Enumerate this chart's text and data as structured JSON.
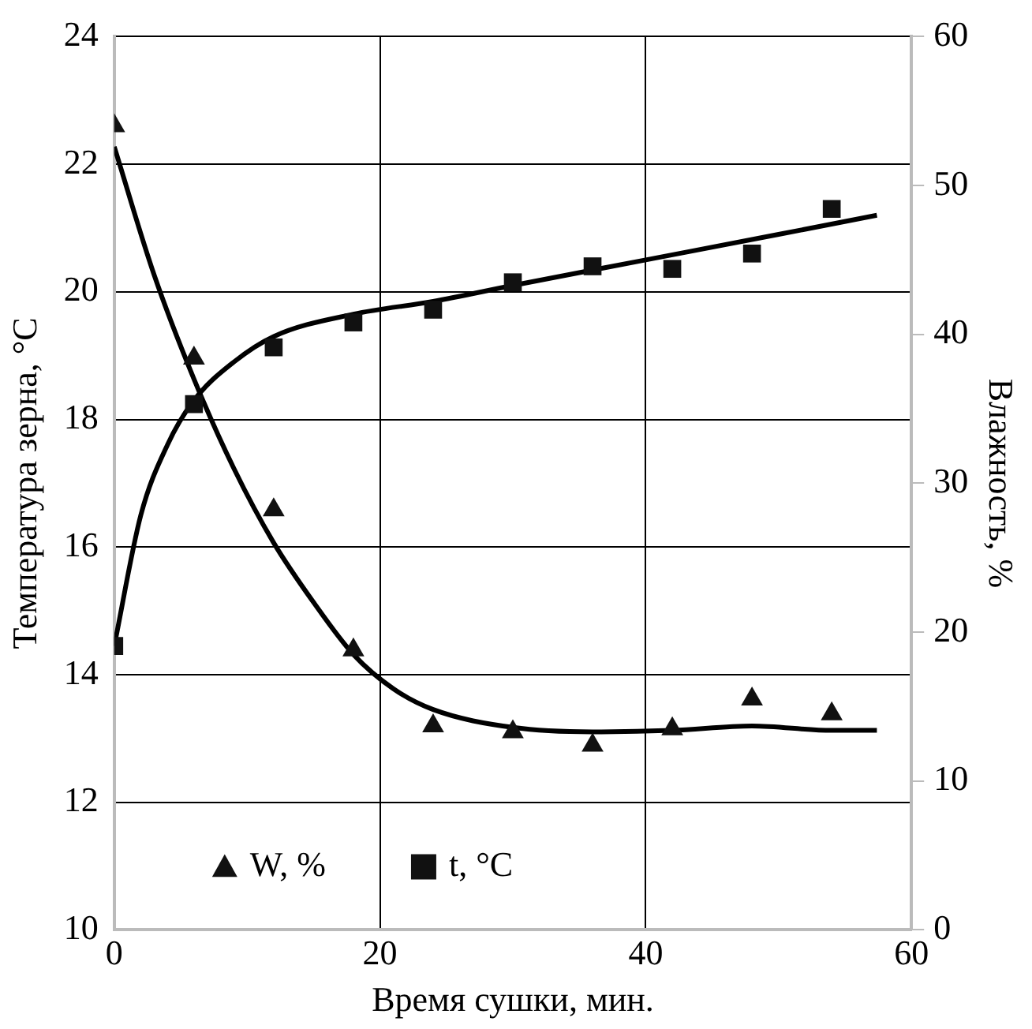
{
  "chart_data": {
    "type": "scatter",
    "xlabel": "Время сушки, мин.",
    "ylabel": "Температура зерна, °С",
    "y2label": "Влажность, %",
    "xlim": [
      0,
      60
    ],
    "xticks": [
      0,
      20,
      40,
      60
    ],
    "ylim": [
      10,
      24
    ],
    "yticks": [
      10,
      12,
      14,
      16,
      18,
      20,
      22,
      24
    ],
    "y2lim": [
      0,
      60
    ],
    "y2ticks": [
      0,
      10,
      20,
      30,
      40,
      50,
      60
    ],
    "grid": true,
    "legend": "bottom",
    "x": [
      0,
      6,
      12,
      18,
      24,
      30,
      36,
      42,
      48,
      54
    ],
    "series": [
      {
        "name": "W, %",
        "type": "scatter",
        "axis": "y2",
        "marker": "triangle",
        "color": "#111111",
        "values": [
          54.0,
          38.4,
          28.2,
          18.8,
          13.7,
          13.3,
          12.4,
          13.5,
          15.5,
          14.5
        ]
      },
      {
        "name": "t, °С",
        "type": "scatter",
        "axis": "y",
        "marker": "square",
        "color": "#111111",
        "values": [
          14.45,
          18.24,
          19.13,
          19.52,
          19.72,
          20.15,
          20.4,
          20.36,
          20.6,
          21.3
        ]
      },
      {
        "type": "line",
        "axis": "y2",
        "marker": "none",
        "color": "#000000",
        "x": [
          0,
          3,
          6,
          9,
          12,
          15,
          18,
          21,
          24,
          30,
          36,
          42,
          48,
          54,
          57.4
        ],
        "values": [
          52.6,
          44,
          37,
          31,
          26,
          22,
          18.5,
          16.2,
          14.8,
          13.6,
          13.3,
          13.4,
          13.7,
          13.4,
          13.4
        ]
      },
      {
        "type": "line",
        "axis": "y",
        "marker": "none",
        "color": "#000000",
        "x": [
          0,
          2,
          4,
          6,
          9,
          12,
          18,
          24,
          30,
          40,
          50,
          57.4
        ],
        "values": [
          14.45,
          16.5,
          17.6,
          18.3,
          18.9,
          19.3,
          19.65,
          19.85,
          20.1,
          20.5,
          20.9,
          21.2
        ]
      }
    ]
  }
}
